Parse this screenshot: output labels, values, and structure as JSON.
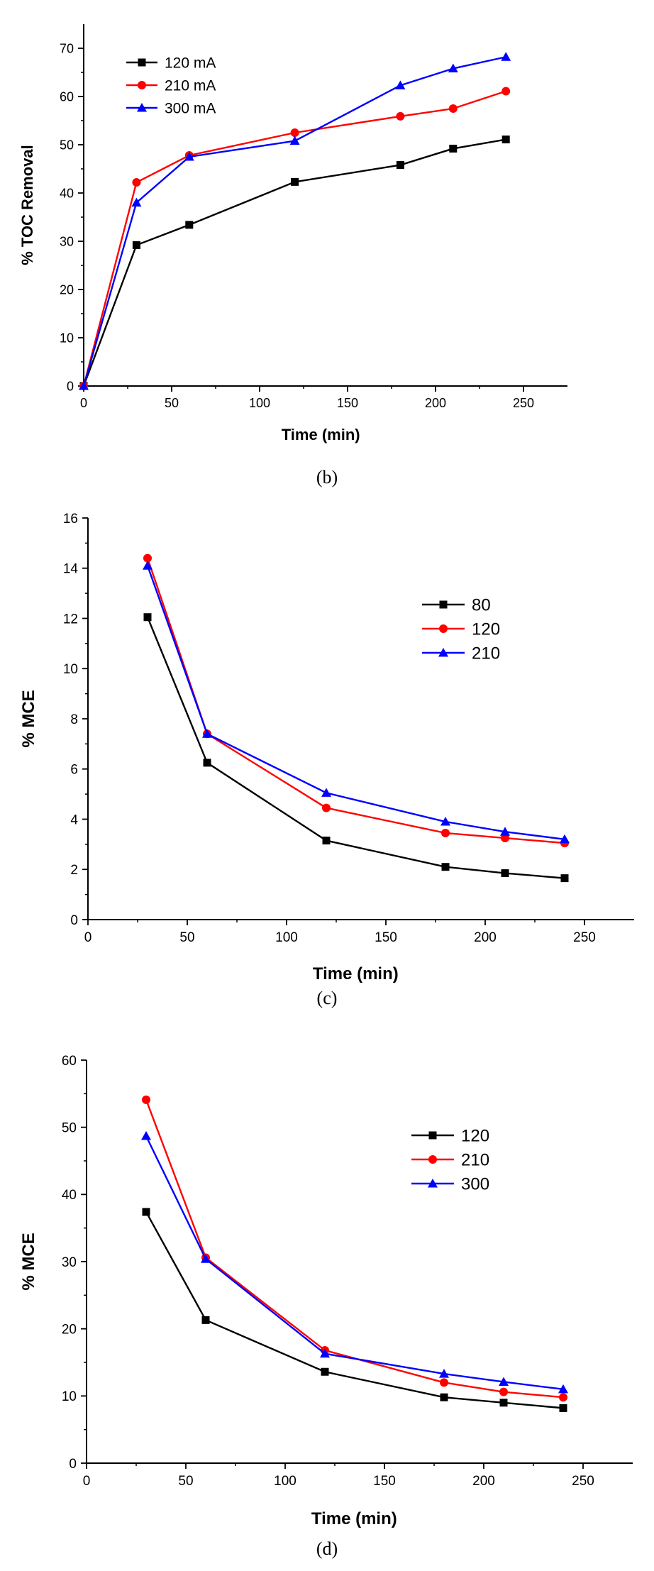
{
  "charts": [
    {
      "id": "b",
      "caption_open": "(",
      "caption_letter": "b",
      "caption_close": ")"
    },
    {
      "id": "c",
      "caption_open": "(",
      "caption_letter": "c",
      "caption_close": ")"
    },
    {
      "id": "d",
      "caption_open": "(",
      "caption_letter": "d",
      "caption_close": ")"
    }
  ],
  "chart_data": [
    {
      "type": "line",
      "panel": "b",
      "title": "",
      "xlabel": "Time (min)",
      "ylabel": "% TOC Removal",
      "xlim": [
        0,
        275
      ],
      "ylim": [
        0,
        75
      ],
      "xticks": [
        0,
        50,
        100,
        150,
        200,
        250
      ],
      "yticks": [
        0,
        10,
        20,
        30,
        40,
        50,
        60,
        70
      ],
      "legend": "top-left",
      "grid": false,
      "series": [
        {
          "name": "120 mA",
          "color": "#000000",
          "marker": "square",
          "x": [
            0,
            30,
            60,
            120,
            180,
            210,
            240
          ],
          "y": [
            0,
            29.2,
            33.4,
            42.3,
            45.8,
            49.2,
            51.1
          ]
        },
        {
          "name": "210 mA",
          "color": "#ff0000",
          "marker": "circle",
          "x": [
            0,
            30,
            60,
            120,
            180,
            210,
            240
          ],
          "y": [
            0,
            42.2,
            47.8,
            52.5,
            55.9,
            57.5,
            61.1
          ]
        },
        {
          "name": "300 mA",
          "color": "#0000ff",
          "marker": "triangle",
          "x": [
            0,
            30,
            60,
            120,
            180,
            210,
            240
          ],
          "y": [
            0,
            38.0,
            47.5,
            50.8,
            62.3,
            65.8,
            68.2
          ]
        }
      ]
    },
    {
      "type": "line",
      "panel": "c",
      "title": "",
      "xlabel": "Time (min)",
      "ylabel": "% MCE",
      "xlim": [
        0,
        275
      ],
      "ylim": [
        0,
        16
      ],
      "xticks": [
        0,
        50,
        100,
        150,
        200,
        250
      ],
      "yticks": [
        0,
        2,
        4,
        6,
        8,
        10,
        12,
        14,
        16
      ],
      "legend": "right",
      "grid": false,
      "series": [
        {
          "name": "80",
          "color": "#000000",
          "marker": "square",
          "x": [
            30,
            60,
            120,
            180,
            210,
            240
          ],
          "y": [
            12.05,
            6.25,
            3.15,
            2.1,
            1.85,
            1.65
          ]
        },
        {
          "name": "120",
          "color": "#ff0000",
          "marker": "circle",
          "x": [
            30,
            60,
            120,
            180,
            210,
            240
          ],
          "y": [
            14.4,
            7.4,
            4.45,
            3.45,
            3.25,
            3.05
          ]
        },
        {
          "name": "210",
          "color": "#0000ff",
          "marker": "triangle",
          "x": [
            30,
            60,
            120,
            180,
            210,
            240
          ],
          "y": [
            14.1,
            7.4,
            5.05,
            3.9,
            3.5,
            3.2
          ]
        }
      ]
    },
    {
      "type": "line",
      "panel": "d",
      "title": "",
      "xlabel": "Time (min)",
      "ylabel": "% MCE",
      "xlim": [
        0,
        275
      ],
      "ylim": [
        0,
        60
      ],
      "xticks": [
        0,
        50,
        100,
        150,
        200,
        250
      ],
      "yticks": [
        0,
        10,
        20,
        30,
        40,
        50,
        60
      ],
      "legend": "right",
      "grid": false,
      "series": [
        {
          "name": "120",
          "color": "#000000",
          "marker": "square",
          "x": [
            30,
            60,
            120,
            180,
            210,
            240
          ],
          "y": [
            37.4,
            21.3,
            13.6,
            9.8,
            9.0,
            8.2
          ]
        },
        {
          "name": "210",
          "color": "#ff0000",
          "marker": "circle",
          "x": [
            30,
            60,
            120,
            180,
            210,
            240
          ],
          "y": [
            54.1,
            30.6,
            16.8,
            12.0,
            10.6,
            9.8
          ]
        },
        {
          "name": "300",
          "color": "#0000ff",
          "marker": "triangle",
          "x": [
            30,
            60,
            120,
            180,
            210,
            240
          ],
          "y": [
            48.7,
            30.4,
            16.3,
            13.3,
            12.1,
            11.0
          ]
        }
      ]
    }
  ]
}
